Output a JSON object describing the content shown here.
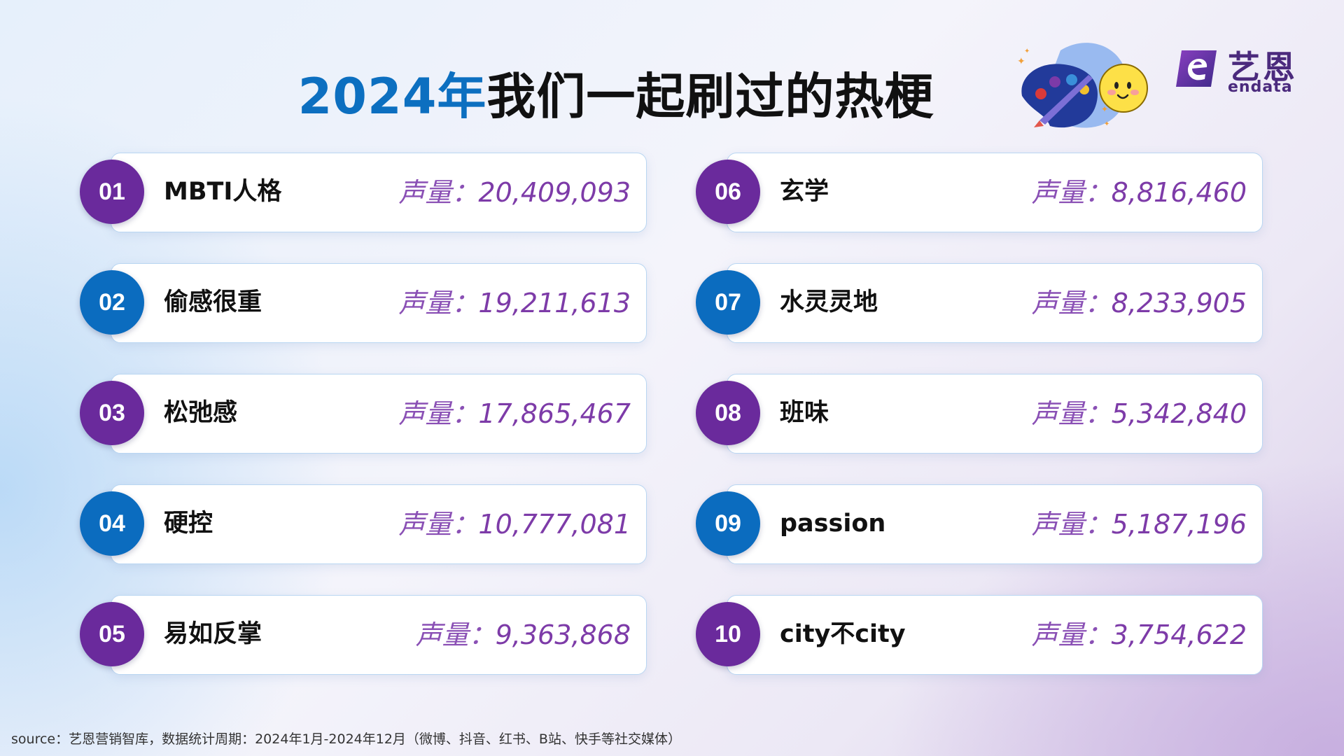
{
  "title": {
    "year": "2024年",
    "rest": "我们一起刷过的热梗"
  },
  "brand": {
    "name_cn": "艺恩",
    "name_en": "endata",
    "color": "#4b2a7d"
  },
  "colors": {
    "purple_badge": "#6a2a9c",
    "blue_badge": "#0b6cbf",
    "volume_text": "#7d3ba8",
    "title_year": "#0c6fc0"
  },
  "volume_label": "声量：",
  "items": [
    {
      "rank": "01",
      "term": "MBTI人格",
      "volume": "20,409,093",
      "badge": "purple"
    },
    {
      "rank": "02",
      "term": "偷感很重",
      "volume": "19,211,613",
      "badge": "blue"
    },
    {
      "rank": "03",
      "term": "松弛感",
      "volume": "17,865,467",
      "badge": "purple"
    },
    {
      "rank": "04",
      "term": "硬控",
      "volume": "10,777,081",
      "badge": "blue"
    },
    {
      "rank": "05",
      "term": "易如反掌",
      "volume": "9,363,868",
      "badge": "purple"
    },
    {
      "rank": "06",
      "term": "玄学",
      "volume": "8,816,460",
      "badge": "purple"
    },
    {
      "rank": "07",
      "term": "水灵灵地",
      "volume": "8,233,905",
      "badge": "blue"
    },
    {
      "rank": "08",
      "term": "班味",
      "volume": "5,342,840",
      "badge": "purple"
    },
    {
      "rank": "09",
      "term": "passion",
      "volume": "5,187,196",
      "badge": "blue"
    },
    {
      "rank": "10",
      "term": "city不city",
      "volume": "3,754,622",
      "badge": "purple"
    }
  ],
  "source": "source：艺恩营销智库，数据统计周期：2024年1月-2024年12月（微博、抖音、红书、B站、快手等社交媒体）"
}
